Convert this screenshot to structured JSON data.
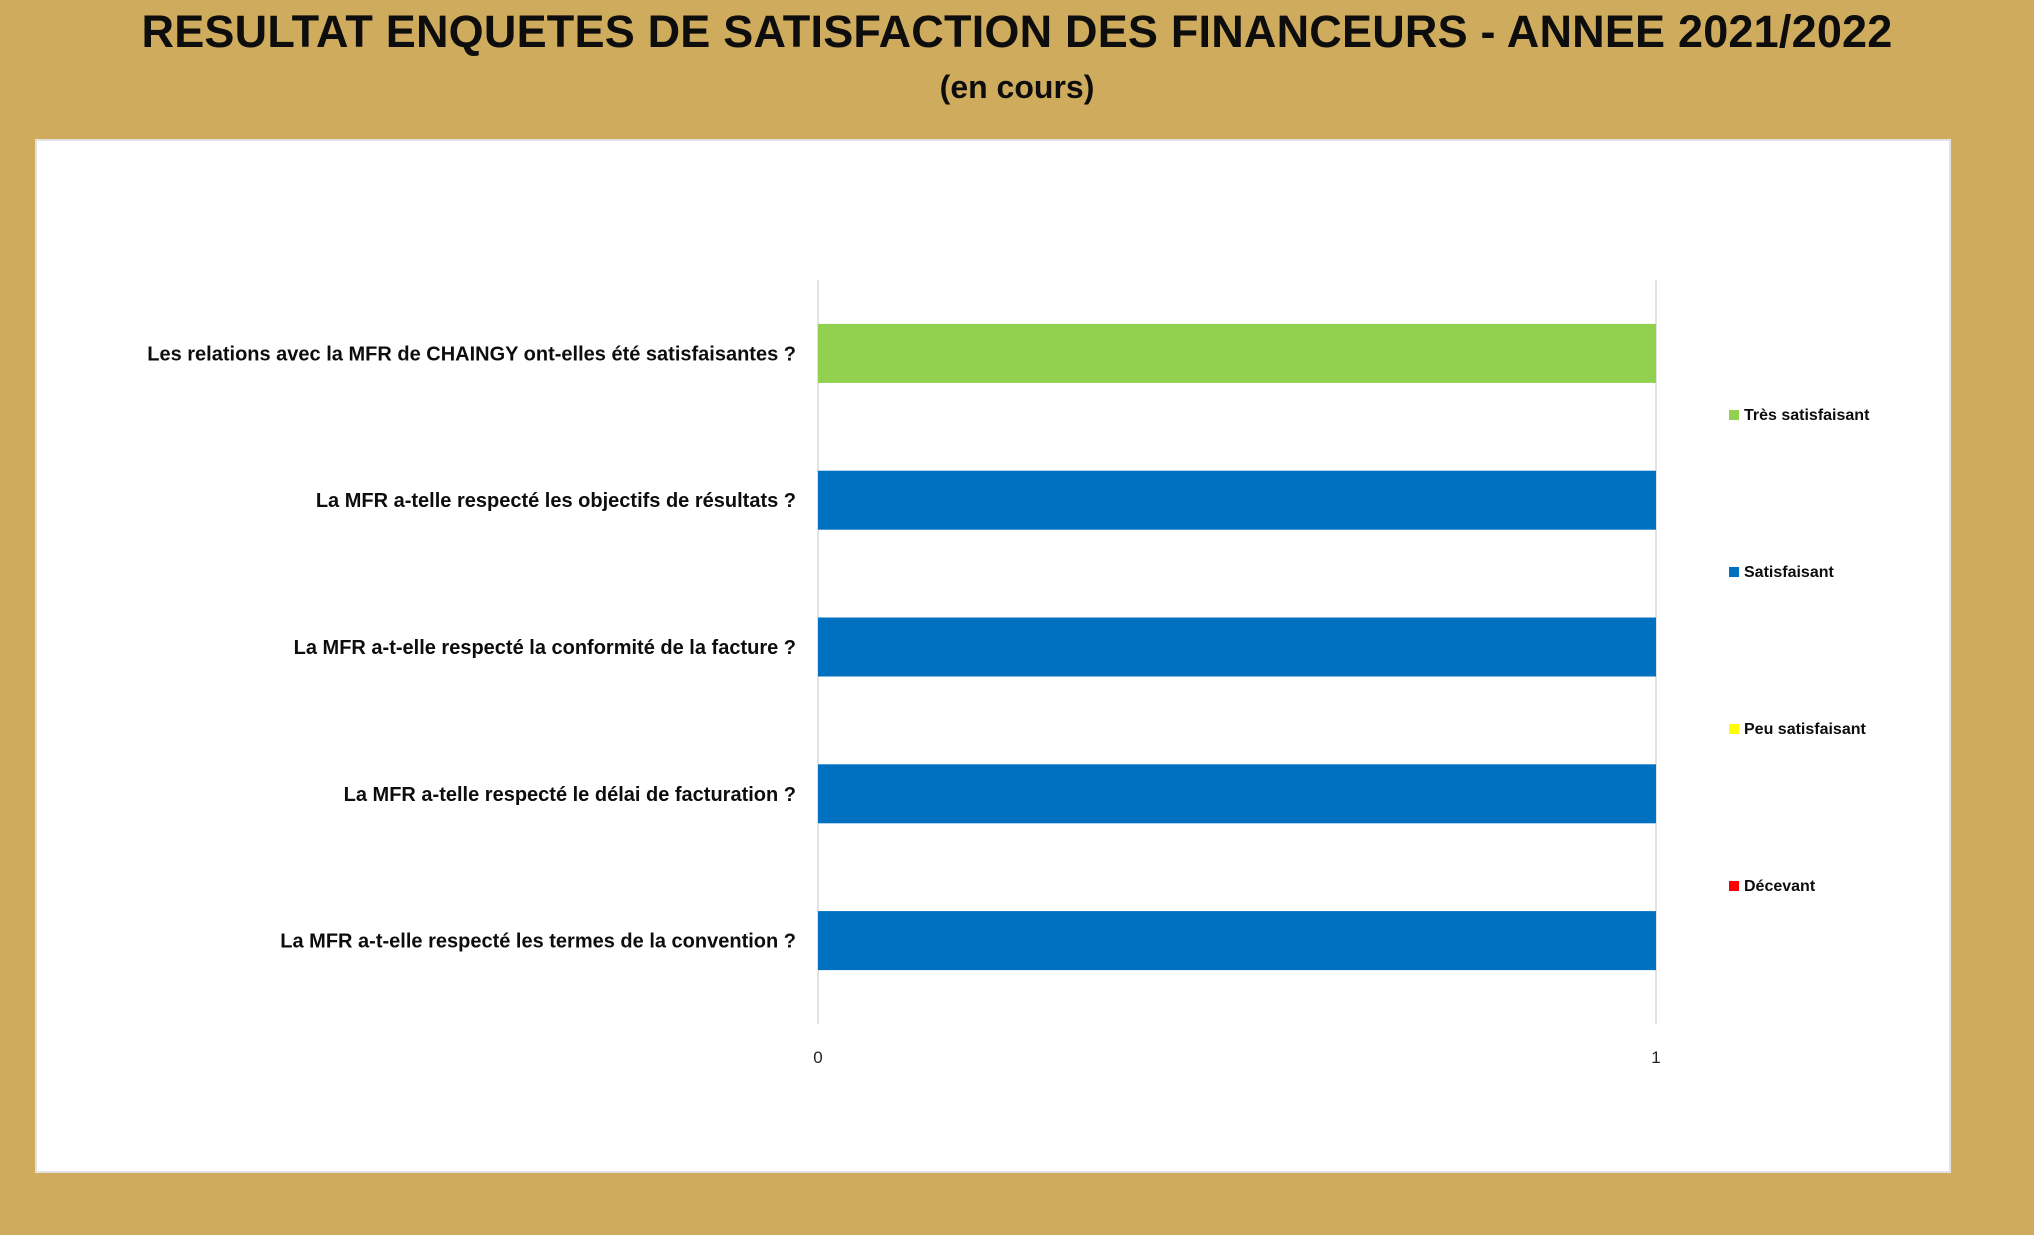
{
  "page": {
    "title": "RESULTAT ENQUETES DE SATISFACTION DES FINANCEURS - ANNEE 2021/2022",
    "subtitle": "(en cours)"
  },
  "chart_data": {
    "type": "bar",
    "orientation": "horizontal",
    "stacked": true,
    "title": "",
    "xlabel": "",
    "ylabel": "",
    "xlim": [
      0,
      1
    ],
    "x_ticks": [
      0,
      1
    ],
    "grid": false,
    "legend_position": "right",
    "categories": [
      "Les relations avec la MFR de CHAINGY ont-elles été satisfaisantes ?",
      "La MFR a-telle respecté les objectifs de résultats ?",
      "La MFR a-t-elle respecté la conformité de la facture ?",
      "La MFR a-telle respecté le délai de facturation ?",
      "La MFR a-t-elle respecté les termes de la convention ?"
    ],
    "series": [
      {
        "name": "Très satisfaisant",
        "color": "#92d050",
        "values": [
          1,
          0,
          0,
          0,
          0
        ]
      },
      {
        "name": "Satisfaisant",
        "color": "#0070c0",
        "values": [
          0,
          1,
          1,
          1,
          1
        ]
      },
      {
        "name": "Peu satisfaisant",
        "color": "#ffff00",
        "values": [
          0,
          0,
          0,
          0,
          0
        ]
      },
      {
        "name": "Décevant",
        "color": "#ff0000",
        "values": [
          0,
          0,
          0,
          0,
          0
        ]
      }
    ]
  }
}
